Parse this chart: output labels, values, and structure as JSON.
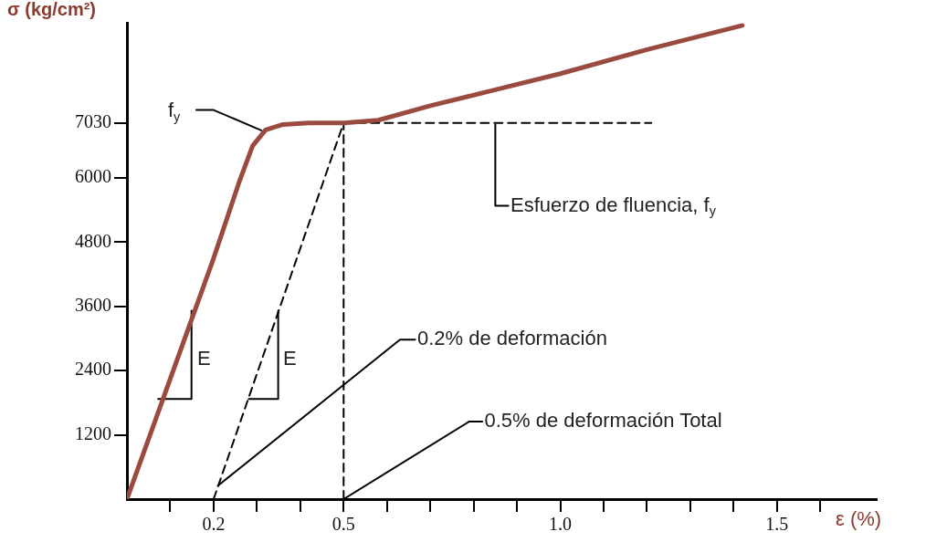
{
  "chart_data": {
    "type": "line",
    "xlabel": "ε (%)",
    "ylabel": "σ (kg/cm²)",
    "xlim": [
      0,
      1.73
    ],
    "ylim": [
      0,
      8900
    ],
    "xticks": [
      {
        "value": 0.1,
        "label": null
      },
      0.2,
      {
        "value": 0.3,
        "label": null
      },
      {
        "value": 0.4,
        "label": null
      },
      0.5,
      {
        "value": 0.6,
        "label": null
      },
      {
        "value": 0.7,
        "label": null
      },
      {
        "value": 0.8,
        "label": null
      },
      {
        "value": 0.9,
        "label": null
      },
      {
        "value": 1,
        "label": "1.0"
      },
      {
        "value": 1.1,
        "label": null
      },
      {
        "value": 1.2,
        "label": null
      },
      {
        "value": 1.3,
        "label": null
      },
      {
        "value": 1.4,
        "label": null
      },
      1.5,
      {
        "value": 1.6,
        "label": null
      }
    ],
    "yticks": [
      1200,
      2400,
      3600,
      4800,
      6000,
      7030
    ],
    "grid": false,
    "legend": false,
    "marker": "none",
    "series": [
      {
        "color": "#9a4a3f",
        "x": [
          0,
          0.1,
          0.2,
          0.26,
          0.29,
          0.32,
          0.36,
          0.42,
          0.5,
          0.58,
          0.7,
          0.85,
          1.0,
          1.2,
          1.42
        ],
        "values": [
          0,
          2250,
          4500,
          5950,
          6600,
          6900,
          7000,
          7030,
          7030,
          7080,
          7350,
          7650,
          7950,
          8400,
          8850
        ]
      },
      {
        "color": "#000000",
        "line_style": "dashed",
        "x": [
          0.2,
          0.5
        ],
        "values": [
          0,
          7030
        ]
      },
      {
        "color": "#000000",
        "line_style": "dashed",
        "x": [
          0.5,
          0.5
        ],
        "values": [
          0,
          7030
        ]
      },
      {
        "color": "#000000",
        "line_style": "dashed",
        "x": [
          0.5,
          1.21
        ],
        "values": [
          7030,
          7030
        ]
      },
      {
        "color": "#000000",
        "line_style": "solid",
        "x": [
          0.072,
          0.149,
          0.149
        ],
        "values": [
          1870,
          1870,
          3520
        ]
      },
      {
        "color": "#000000",
        "line_style": "solid",
        "x": [
          0.281,
          0.349,
          0.349
        ],
        "values": [
          1870,
          1870,
          3520
        ]
      },
      {
        "color": "#000000",
        "line_style": "solid",
        "x": [
          0.21,
          0.63,
          0.665
        ],
        "values": [
          250,
          2980,
          2980
        ]
      },
      {
        "color": "#000000",
        "line_style": "solid",
        "x": [
          0.5,
          0.79,
          0.82
        ],
        "values": [
          0,
          1450,
          1450
        ]
      },
      {
        "color": "#000000",
        "line_style": "solid",
        "x": [
          0.85,
          0.85,
          0.88
        ],
        "values": [
          7000,
          5480,
          5480
        ]
      },
      {
        "color": "#000000",
        "line_style": "solid",
        "x": [
          0.16,
          0.2,
          0.31
        ],
        "values": [
          7270,
          7270,
          6890
        ]
      }
    ],
    "annotations": [
      "E",
      "E",
      "f$_{y}$",
      {
        "text": "Esfuerzo de fluencia, f$_{y}$",
        "x": 0.885,
        "y": 5480
      },
      {
        "text": "0.2% de deformación",
        "x": 0.67,
        "y": 2980
      },
      {
        "text": "0.5% de deformación Total",
        "x": 0.825,
        "y": 1450
      }
    ]
  }
}
